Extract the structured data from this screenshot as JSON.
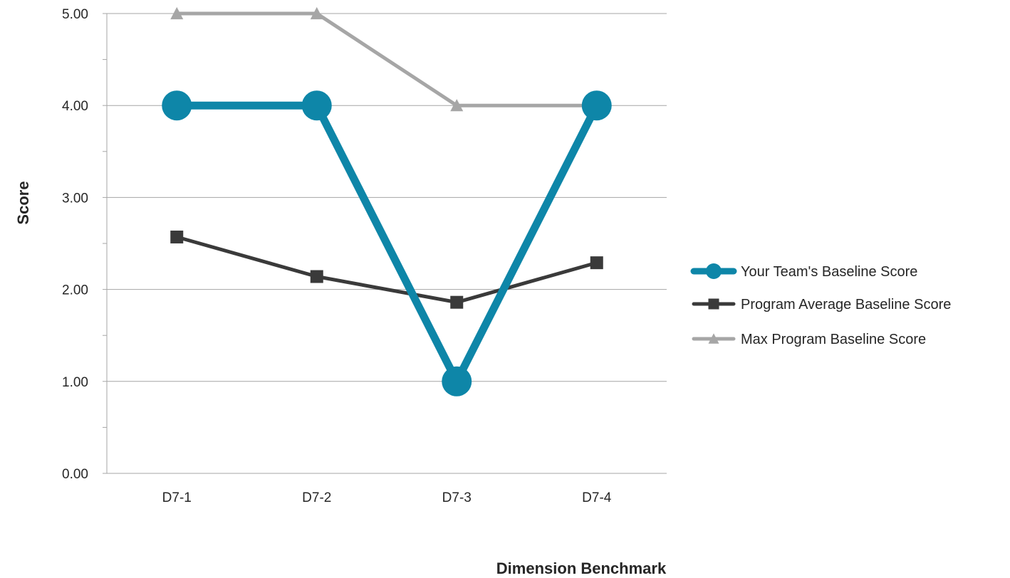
{
  "chart_data": {
    "type": "line",
    "title": "",
    "xlabel": "Dimension Benchmark",
    "ylabel": "Score",
    "categories": [
      "D7-1",
      "D7-2",
      "D7-3",
      "D7-4"
    ],
    "ylim": [
      0,
      5
    ],
    "y_ticks": [
      "0.00",
      "1.00",
      "2.00",
      "3.00",
      "4.00",
      "5.00"
    ],
    "grid": true,
    "legend_position": "right",
    "series": [
      {
        "name": "Your Team's Baseline Score",
        "values": [
          4,
          4,
          1,
          4
        ],
        "color": "#0E86A8",
        "marker": "circle"
      },
      {
        "name": "Program Average Baseline Score",
        "values": [
          2.57,
          2.14,
          1.86,
          2.29
        ],
        "color": "#3A3A3A",
        "marker": "square"
      },
      {
        "name": "Max Program Baseline Score",
        "values": [
          5,
          5,
          4,
          4
        ],
        "color": "#A6A6A6",
        "marker": "triangle"
      }
    ]
  }
}
